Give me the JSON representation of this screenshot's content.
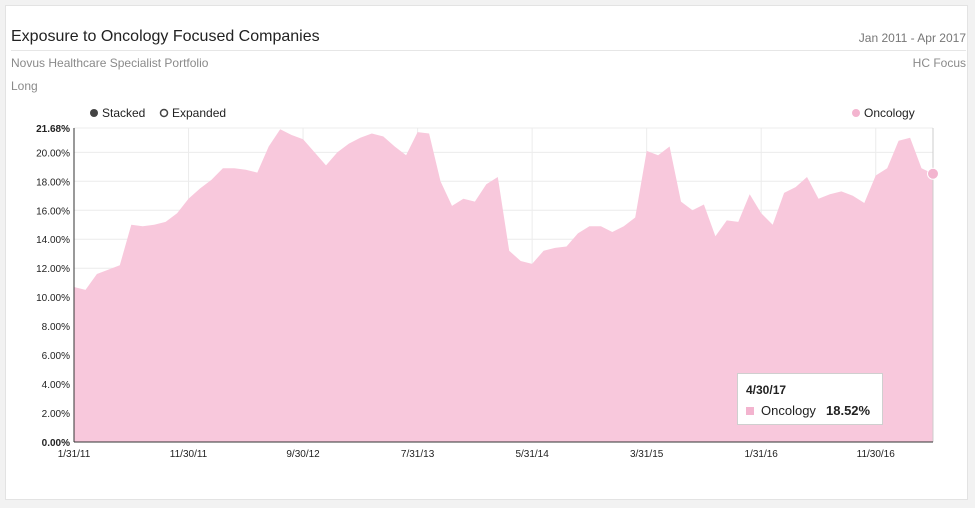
{
  "header": {
    "title": "Exposure to Oncology Focused Companies",
    "date_range": "Jan 2011 - Apr 2017",
    "subtitle": "Novus Healthcare Specialist Portfolio",
    "focus": "HC Focus",
    "side": "Long"
  },
  "controls": {
    "stacked_label": "Stacked",
    "expanded_label": "Expanded",
    "selected": "stacked"
  },
  "tooltip": {
    "date": "4/30/17",
    "series": "Oncology",
    "value": "18.52%"
  },
  "colors": {
    "area": "#f8c8dc",
    "marker": "#f3b4cf",
    "axis": "#333333"
  },
  "chart_data": {
    "type": "area",
    "legend": [
      "Oncology"
    ],
    "legend_position": "top-right",
    "grid": true,
    "ylim": [
      0,
      21.68
    ],
    "y_ticks": [
      0,
      2,
      4,
      6,
      8,
      10,
      12,
      14,
      16,
      18,
      20,
      21.68
    ],
    "y_tick_labels": [
      "0.00%",
      "2.00%",
      "4.00%",
      "6.00%",
      "8.00%",
      "10.00%",
      "12.00%",
      "14.00%",
      "16.00%",
      "18.00%",
      "20.00%",
      "21.68%"
    ],
    "x_tick_labels": [
      "1/31/11",
      "11/30/11",
      "9/30/12",
      "7/31/13",
      "5/31/14",
      "3/31/15",
      "1/31/16",
      "11/30/16"
    ],
    "x_tick_indices": [
      0,
      10,
      20,
      30,
      40,
      50,
      60,
      70
    ],
    "series": [
      {
        "name": "Oncology",
        "values": [
          10.7,
          10.5,
          11.6,
          11.9,
          12.2,
          15.0,
          14.9,
          15.0,
          15.2,
          15.8,
          16.8,
          17.5,
          18.1,
          18.9,
          18.9,
          18.8,
          18.6,
          20.4,
          21.6,
          21.2,
          20.9,
          20.0,
          19.1,
          20.0,
          20.6,
          21.0,
          21.3,
          21.1,
          20.4,
          19.8,
          21.4,
          21.3,
          18.0,
          16.3,
          16.8,
          16.6,
          17.8,
          18.3,
          13.2,
          12.5,
          12.3,
          13.2,
          13.4,
          13.5,
          14.4,
          14.9,
          14.9,
          14.5,
          14.9,
          15.5,
          20.1,
          19.8,
          20.4,
          16.6,
          16.0,
          16.4,
          14.2,
          15.3,
          15.2,
          17.1,
          15.8,
          15.0,
          17.2,
          17.6,
          18.3,
          16.8,
          17.1,
          17.3,
          17.0,
          16.5,
          18.4,
          18.9,
          20.8,
          21.0,
          18.9,
          18.52
        ]
      }
    ]
  }
}
